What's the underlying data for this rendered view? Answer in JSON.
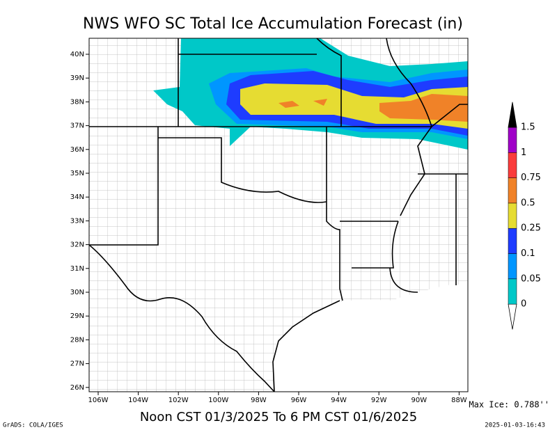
{
  "title": "NWS WFO SC Total Ice Accumulation Forecast (in)",
  "map": {
    "lat_labels": [
      "40N",
      "39N",
      "38N",
      "37N",
      "36N",
      "35N",
      "34N",
      "33N",
      "32N",
      "31N",
      "30N",
      "29N",
      "28N",
      "27N",
      "26N"
    ],
    "lon_labels": [
      "106W",
      "104W",
      "102W",
      "100W",
      "98W",
      "96W",
      "94W",
      "92W",
      "90W",
      "88W"
    ]
  },
  "colorbar": {
    "levels": [
      0,
      0.05,
      0.1,
      0.25,
      0.5,
      0.75,
      1,
      1.5
    ],
    "colors": [
      "#ffffff",
      "#00c8c8",
      "#0096ff",
      "#1e3cff",
      "#e6dc32",
      "#f08228",
      "#fa3c3c",
      "#a000c8",
      "#000000"
    ]
  },
  "max_ice": "Max Ice: 0.788''",
  "valid_period": "Noon CST 01/3/2025 To 6 PM CST 01/6/2025",
  "credit": "GrADS: COLA/IGES",
  "timestamp": "2025-01-03-16:43"
}
